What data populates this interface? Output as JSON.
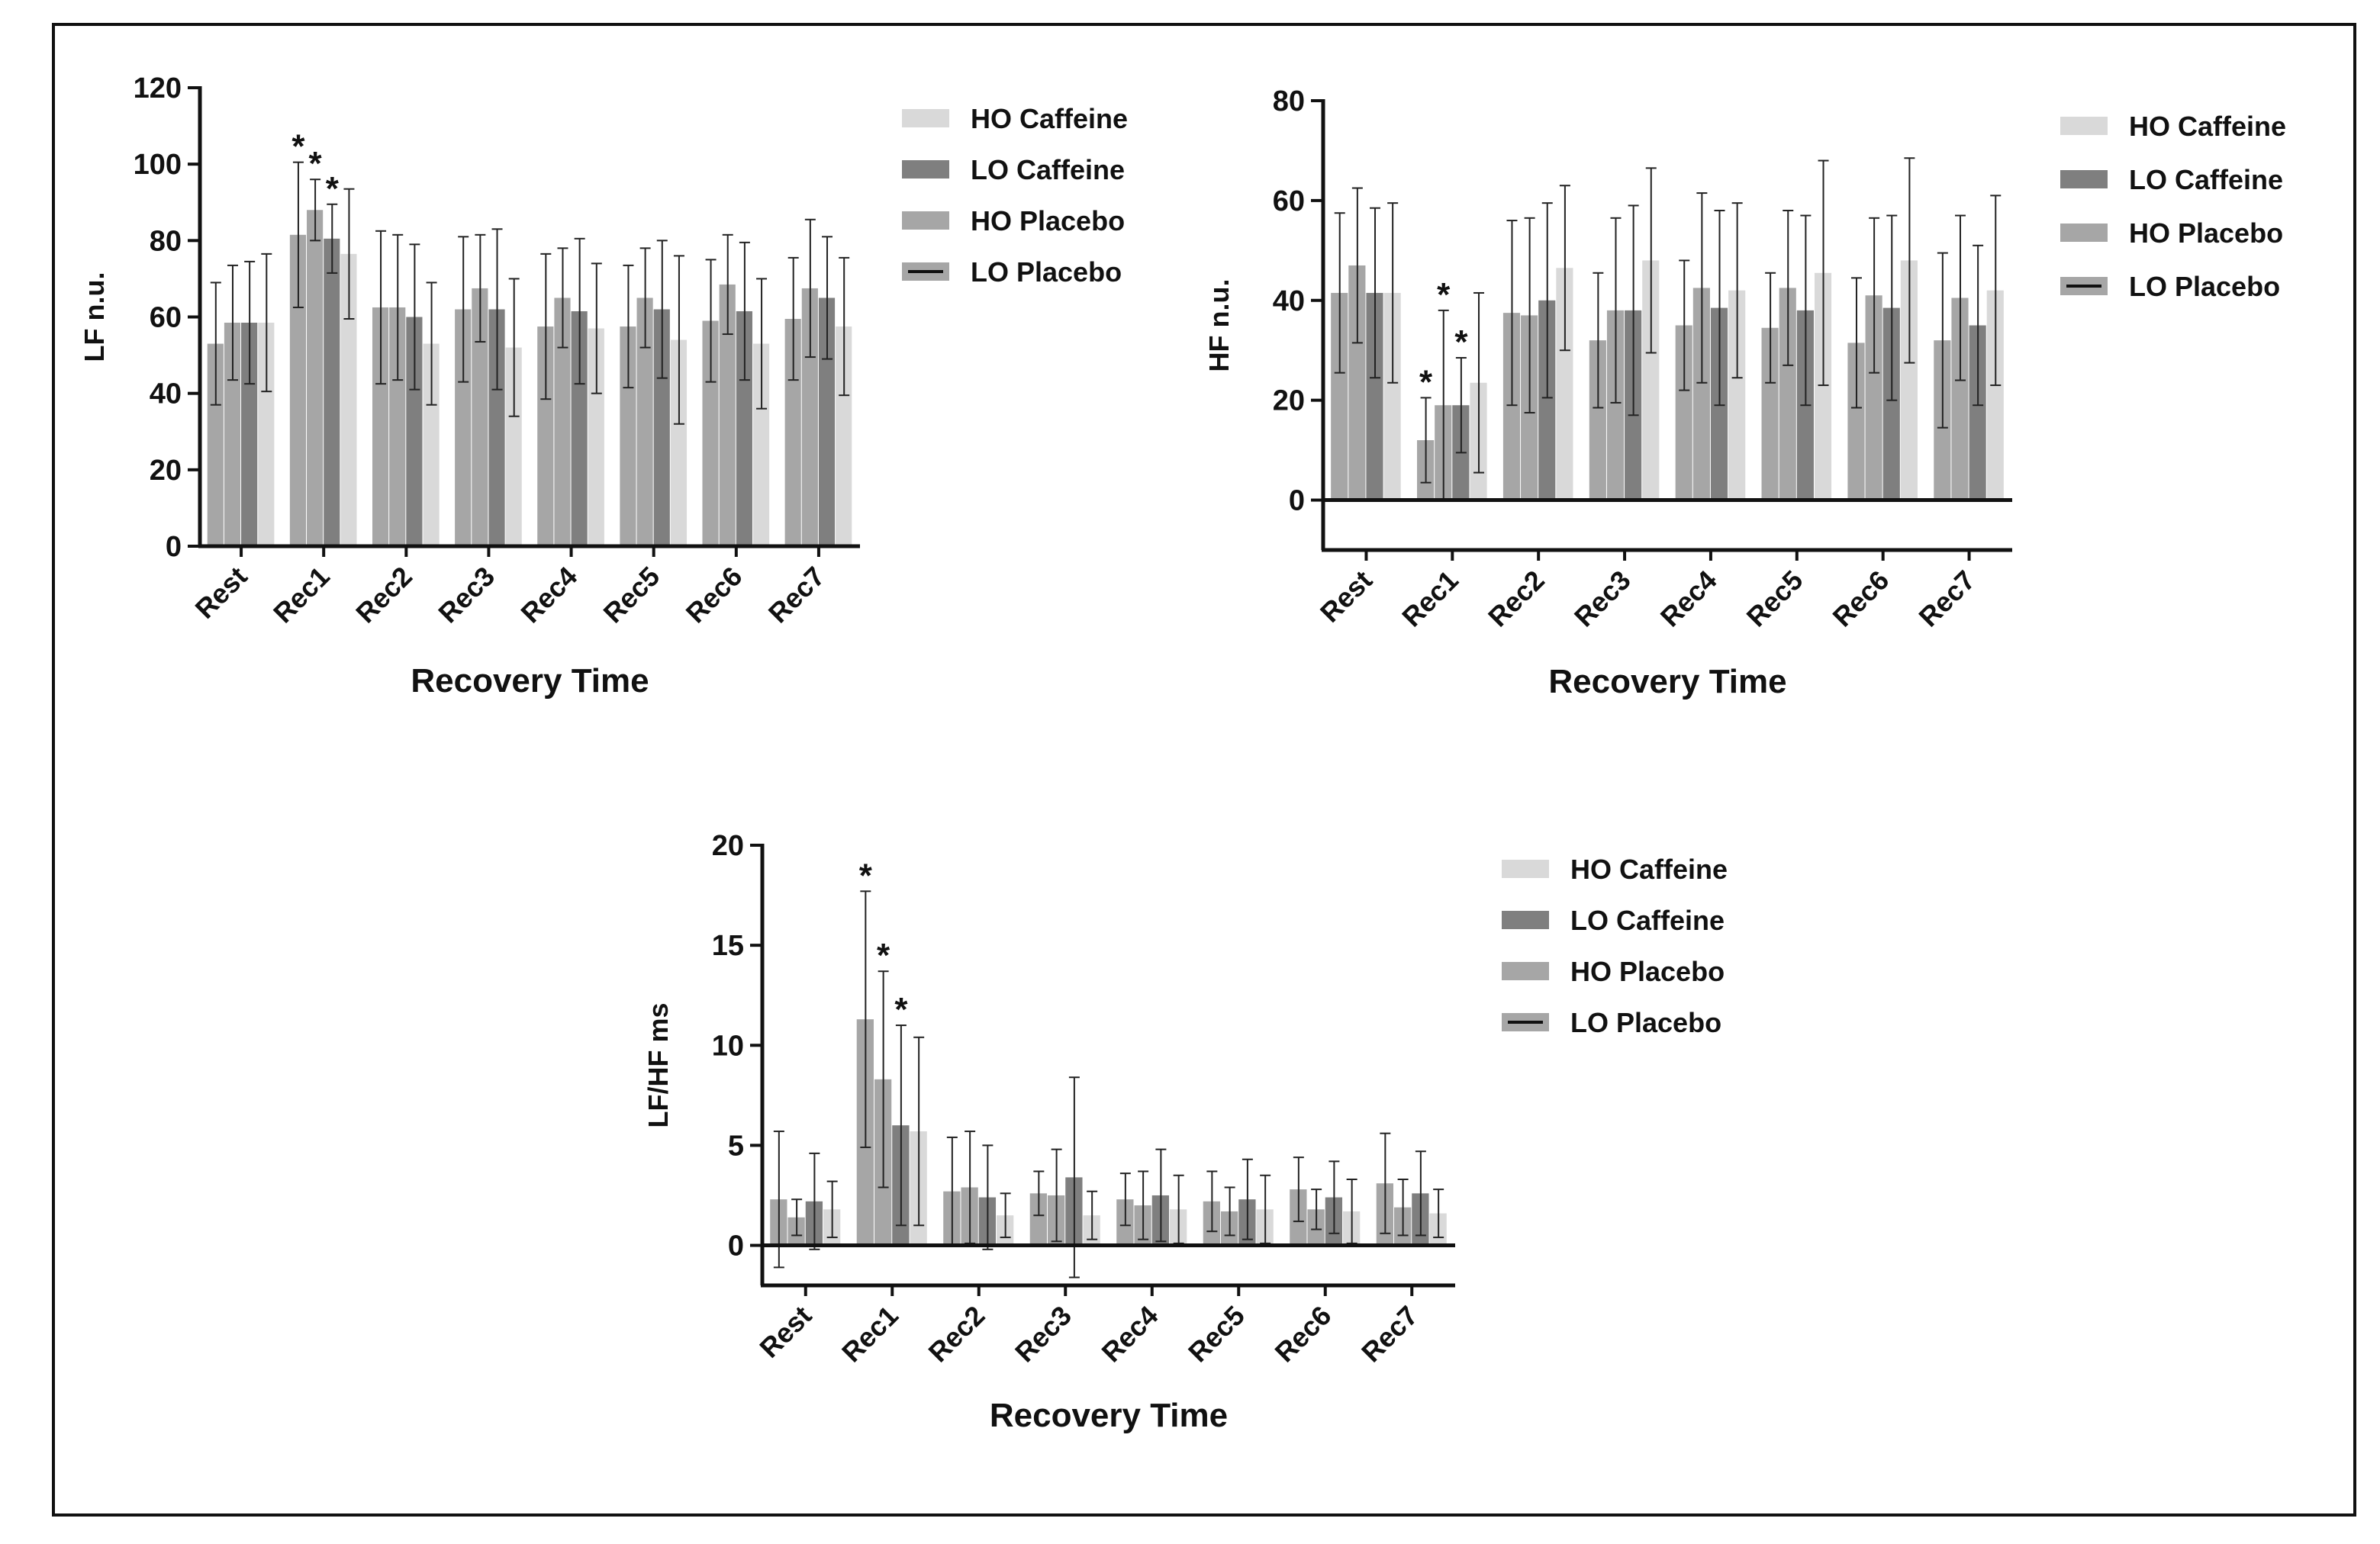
{
  "colors": {
    "ho_caffeine": "#d9d9d9",
    "lo_caffeine": "#7f7f7f",
    "ho_placebo": "#a6a6a6",
    "lo_placebo": "#a6a6a6",
    "axis": "#111111",
    "error_bar": "#222222"
  },
  "chart_data": [
    {
      "type": "bar",
      "id": "lf",
      "title": "",
      "xlabel": "Recovery Time",
      "ylabel": "LF n.u.",
      "ylim": [
        0,
        120
      ],
      "yticks": [
        0,
        20,
        40,
        60,
        80,
        100,
        120
      ],
      "categories": [
        "Rest",
        "Rec1",
        "Rec2",
        "Rec3",
        "Rec4",
        "Rec5",
        "Rec6",
        "Rec7"
      ],
      "legend": [
        "HO Caffeine",
        "LO Caffeine",
        "HO Placebo",
        "LO Placebo"
      ],
      "series": [
        {
          "name": "LO Placebo",
          "color_key": "lo_placebo",
          "values": [
            53,
            81.5,
            62.5,
            62,
            57.5,
            57.5,
            59,
            59.5
          ],
          "errors": [
            16,
            19,
            20,
            19,
            19,
            16,
            16,
            16
          ]
        },
        {
          "name": "HO Placebo",
          "color_key": "ho_placebo",
          "values": [
            58.5,
            88,
            62.5,
            67.5,
            65,
            65,
            68.5,
            67.5
          ],
          "errors": [
            15,
            8,
            19,
            14,
            13,
            13,
            13,
            18
          ]
        },
        {
          "name": "LO Caffeine",
          "color_key": "lo_caffeine",
          "values": [
            58.5,
            80.5,
            60,
            62,
            61.5,
            62,
            61.5,
            65
          ],
          "errors": [
            16,
            9,
            19,
            21,
            19,
            18,
            18,
            16
          ]
        },
        {
          "name": "HO Caffeine",
          "color_key": "ho_caffeine",
          "values": [
            58.5,
            76.5,
            53,
            52,
            57,
            54,
            53,
            57.5
          ],
          "errors": [
            18,
            17,
            16,
            18,
            17,
            22,
            17,
            18
          ]
        }
      ],
      "significance": [
        {
          "category": "Rec1",
          "series": "LO Placebo",
          "label": "*"
        },
        {
          "category": "Rec1",
          "series": "HO Placebo",
          "label": "*"
        },
        {
          "category": "Rec1",
          "series": "LO Caffeine",
          "label": "*"
        }
      ]
    },
    {
      "type": "bar",
      "id": "hf",
      "title": "",
      "xlabel": "Recovery Time",
      "ylabel": "HF n.u.",
      "ylim": [
        -10,
        80
      ],
      "yticks": [
        0,
        20,
        40,
        60,
        80
      ],
      "categories": [
        "Rest",
        "Rec1",
        "Rec2",
        "Rec3",
        "Rec4",
        "Rec5",
        "Rec6",
        "Rec7"
      ],
      "legend": [
        "HO Caffeine",
        "LO Caffeine",
        "HO Placebo",
        "LO Placebo"
      ],
      "series": [
        {
          "name": "LO Placebo",
          "color_key": "lo_placebo",
          "values": [
            41.5,
            12,
            37.5,
            32,
            35,
            34.5,
            31.5,
            32
          ],
          "errors": [
            16,
            8.5,
            18.5,
            13.5,
            13,
            11,
            13,
            17.5
          ]
        },
        {
          "name": "HO Placebo",
          "color_key": "ho_placebo",
          "values": [
            47,
            19,
            37,
            38,
            42.5,
            42.5,
            41,
            40.5
          ],
          "errors": [
            15.5,
            19,
            19.5,
            18.5,
            19,
            15.5,
            15.5,
            16.5
          ]
        },
        {
          "name": "LO Caffeine",
          "color_key": "lo_caffeine",
          "values": [
            41.5,
            19,
            40,
            38,
            38.5,
            38,
            38.5,
            35
          ],
          "errors": [
            17,
            9.5,
            19.5,
            21,
            19.5,
            19,
            18.5,
            16
          ]
        },
        {
          "name": "HO Caffeine",
          "color_key": "ho_caffeine",
          "values": [
            41.5,
            23.5,
            46.5,
            48,
            42,
            45.5,
            48,
            42
          ],
          "errors": [
            18,
            18,
            16.5,
            18.5,
            17.5,
            22.5,
            20.5,
            19
          ]
        }
      ],
      "significance": [
        {
          "category": "Rec1",
          "series": "LO Placebo",
          "label": "*"
        },
        {
          "category": "Rec1",
          "series": "HO Placebo",
          "label": "*"
        },
        {
          "category": "Rec1",
          "series": "LO Caffeine",
          "label": "*"
        }
      ]
    },
    {
      "type": "bar",
      "id": "lfhf",
      "title": "",
      "xlabel": "Recovery Time",
      "ylabel": "LF/HF ms",
      "ylim": [
        -2,
        20
      ],
      "yticks": [
        0,
        5,
        10,
        15,
        20
      ],
      "categories": [
        "Rest",
        "Rec1",
        "Rec2",
        "Rec3",
        "Rec4",
        "Rec5",
        "Rec6",
        "Rec7"
      ],
      "legend": [
        "HO Caffeine",
        "LO Caffeine",
        "HO Placebo",
        "LO Placebo"
      ],
      "series": [
        {
          "name": "LO Placebo",
          "color_key": "lo_placebo",
          "values": [
            2.3,
            11.3,
            2.7,
            2.6,
            2.3,
            2.2,
            2.8,
            3.1
          ],
          "errors": [
            3.4,
            6.4,
            2.7,
            1.1,
            1.3,
            1.5,
            1.6,
            2.5
          ]
        },
        {
          "name": "HO Placebo",
          "color_key": "ho_placebo",
          "values": [
            1.4,
            8.3,
            2.9,
            2.5,
            2.0,
            1.7,
            1.8,
            1.9
          ],
          "errors": [
            0.9,
            5.4,
            2.8,
            2.3,
            1.7,
            1.2,
            1.0,
            1.4
          ]
        },
        {
          "name": "LO Caffeine",
          "color_key": "lo_caffeine",
          "values": [
            2.2,
            6.0,
            2.4,
            3.4,
            2.5,
            2.3,
            2.4,
            2.6
          ],
          "errors": [
            2.4,
            5.0,
            2.6,
            5.0,
            2.3,
            2.0,
            1.8,
            2.1
          ]
        },
        {
          "name": "HO Caffeine",
          "color_key": "ho_caffeine",
          "values": [
            1.8,
            5.7,
            1.5,
            1.5,
            1.8,
            1.8,
            1.7,
            1.6
          ],
          "errors": [
            1.4,
            4.7,
            1.1,
            1.2,
            1.7,
            1.7,
            1.6,
            1.2
          ]
        }
      ],
      "significance": [
        {
          "category": "Rec1",
          "series": "LO Placebo",
          "label": "*"
        },
        {
          "category": "Rec1",
          "series": "HO Placebo",
          "label": "*"
        },
        {
          "category": "Rec1",
          "series": "LO Caffeine",
          "label": "*"
        }
      ]
    }
  ]
}
